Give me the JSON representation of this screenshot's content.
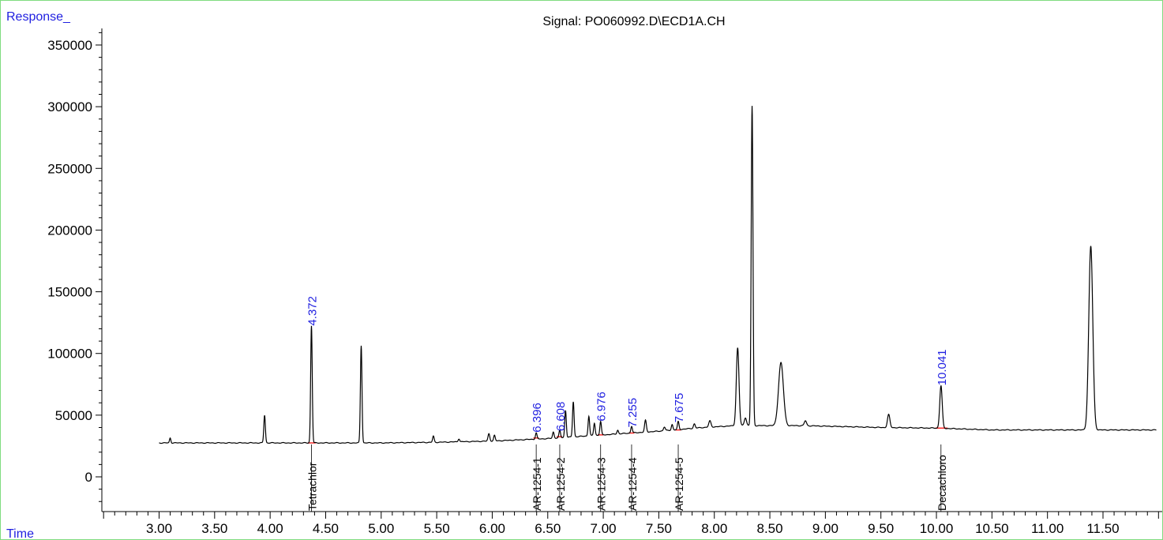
{
  "colors": {
    "border": "#7fdc7f",
    "trace": "#000000",
    "baseline_marker": "#ff2a2a",
    "peak_label": "#1f1fe0",
    "axis_label": "#1f1fe0",
    "compound_label": "#000000"
  },
  "chart_data": {
    "type": "line",
    "title": "Signal: PO060992.D\\ECD1A.CH",
    "ylabel": "Response_",
    "xlabel": "Time",
    "xlim": [
      2.5,
      12.0
    ],
    "ylim": [
      -30000,
      360000
    ],
    "x_tick_labels": [
      "3.00",
      "3.50",
      "4.00",
      "4.50",
      "5.00",
      "5.50",
      "6.00",
      "6.50",
      "7.00",
      "7.50",
      "8.00",
      "8.50",
      "9.00",
      "9.50",
      "10.00",
      "10.50",
      "11.00",
      "11.50"
    ],
    "y_tick_labels": [
      "0",
      "50000",
      "100000",
      "150000",
      "200000",
      "250000",
      "300000",
      "350000"
    ],
    "baseline": [
      [
        3.0,
        27500
      ],
      [
        3.5,
        27500
      ],
      [
        4.5,
        27500
      ],
      [
        5.0,
        27500
      ],
      [
        5.5,
        28000
      ],
      [
        6.0,
        29000
      ],
      [
        6.5,
        31000
      ],
      [
        7.0,
        34000
      ],
      [
        7.5,
        37000
      ],
      [
        7.9,
        40000
      ],
      [
        8.2,
        41500
      ],
      [
        8.8,
        41500
      ],
      [
        9.5,
        40000
      ],
      [
        10.0,
        39500
      ],
      [
        10.5,
        38000
      ],
      [
        11.0,
        38000
      ],
      [
        11.5,
        38000
      ],
      [
        11.98,
        38000
      ]
    ],
    "peaks": [
      {
        "x": 3.1,
        "h": 4000,
        "w": 0.006
      },
      {
        "x": 3.95,
        "h": 22500,
        "w": 0.007
      },
      {
        "x": 4.372,
        "h": 95000,
        "w": 0.007
      },
      {
        "x": 4.82,
        "h": 79000,
        "w": 0.007
      },
      {
        "x": 5.47,
        "h": 5000,
        "w": 0.007
      },
      {
        "x": 5.7,
        "h": 2500,
        "w": 0.007
      },
      {
        "x": 5.97,
        "h": 6000,
        "w": 0.008
      },
      {
        "x": 6.02,
        "h": 4500,
        "w": 0.007
      },
      {
        "x": 6.396,
        "h": 5000,
        "w": 0.007
      },
      {
        "x": 6.55,
        "h": 5000,
        "w": 0.007
      },
      {
        "x": 6.608,
        "h": 6000,
        "w": 0.007
      },
      {
        "x": 6.66,
        "h": 22000,
        "w": 0.007
      },
      {
        "x": 6.73,
        "h": 28500,
        "w": 0.007
      },
      {
        "x": 6.87,
        "h": 16000,
        "w": 0.007
      },
      {
        "x": 6.92,
        "h": 10000,
        "w": 0.007
      },
      {
        "x": 6.976,
        "h": 11000,
        "w": 0.007
      },
      {
        "x": 7.13,
        "h": 3000,
        "w": 0.007
      },
      {
        "x": 7.255,
        "h": 5500,
        "w": 0.007
      },
      {
        "x": 7.38,
        "h": 9500,
        "w": 0.008
      },
      {
        "x": 7.55,
        "h": 3000,
        "w": 0.008
      },
      {
        "x": 7.62,
        "h": 4500,
        "w": 0.007
      },
      {
        "x": 7.675,
        "h": 6500,
        "w": 0.007
      },
      {
        "x": 7.82,
        "h": 3500,
        "w": 0.008
      },
      {
        "x": 7.96,
        "h": 5000,
        "w": 0.01
      },
      {
        "x": 8.21,
        "h": 63000,
        "w": 0.012
      },
      {
        "x": 8.28,
        "h": 6500,
        "w": 0.01
      },
      {
        "x": 8.34,
        "h": 259000,
        "w": 0.008
      },
      {
        "x": 8.6,
        "h": 51000,
        "w": 0.022
      },
      {
        "x": 8.82,
        "h": 4000,
        "w": 0.01
      },
      {
        "x": 9.57,
        "h": 10500,
        "w": 0.011
      },
      {
        "x": 10.041,
        "h": 34500,
        "w": 0.011
      },
      {
        "x": 11.39,
        "h": 149000,
        "w": 0.018
      }
    ],
    "peak_labels": [
      {
        "x": 4.372,
        "y": 122500,
        "text": "4.372"
      },
      {
        "x": 6.396,
        "y": 36000,
        "text": "6.396"
      },
      {
        "x": 6.608,
        "y": 37000,
        "text": "6.608"
      },
      {
        "x": 6.976,
        "y": 45000,
        "text": "6.976"
      },
      {
        "x": 7.255,
        "y": 40000,
        "text": "7.255"
      },
      {
        "x": 7.675,
        "y": 44000,
        "text": "7.675"
      },
      {
        "x": 10.041,
        "y": 74000,
        "text": "10.041"
      }
    ],
    "compound_labels": [
      {
        "x": 4.372,
        "text": "Tetrachlor"
      },
      {
        "x": 6.396,
        "text": "AR-1254-1"
      },
      {
        "x": 6.608,
        "text": "AR-1254-2"
      },
      {
        "x": 6.976,
        "text": "AR-1254-3"
      },
      {
        "x": 7.255,
        "text": "AR-1254-4"
      },
      {
        "x": 7.675,
        "text": "AR-1254-5"
      },
      {
        "x": 10.041,
        "text": "Decachloro"
      }
    ],
    "integration_marks": [
      {
        "x0": 4.34,
        "x1": 4.41,
        "y": 27500
      },
      {
        "x0": 6.37,
        "x1": 6.42,
        "y": 31500
      },
      {
        "x0": 6.58,
        "x1": 6.63,
        "y": 32500
      },
      {
        "x0": 6.95,
        "x1": 7.0,
        "y": 34000
      },
      {
        "x0": 7.23,
        "x1": 7.28,
        "y": 35500
      },
      {
        "x0": 7.65,
        "x1": 7.7,
        "y": 38000
      },
      {
        "x0": 9.99,
        "x1": 10.1,
        "y": 39500
      }
    ]
  }
}
